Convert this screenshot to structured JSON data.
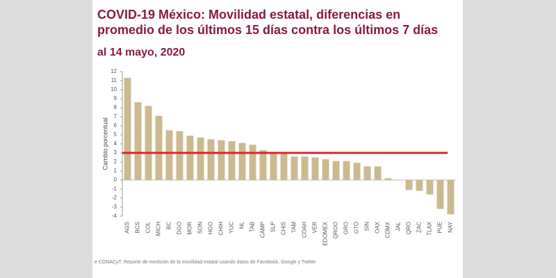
{
  "chart_data": {
    "type": "bar",
    "title": [
      "COVID-19 México: Movilidad estatal, diferencias en",
      "promedio de los últimos 15 días contra los últimos 7 días"
    ],
    "subtitle": "al 14 mayo, 2020",
    "y_label": "Cambio porcentual",
    "source": "e CONACyT, Reporte de medición de la movilidad estatal usando datos de Facebook, Google y Twitter",
    "categories": [
      "AGS",
      "BCS",
      "COL",
      "MICH",
      "BC",
      "DGO",
      "MOR",
      "SON",
      "HGO",
      "CHIH",
      "YUC",
      "NL",
      "TAB",
      "CAMP",
      "SLP",
      "CHIS",
      "TAM",
      "COAH",
      "VER",
      "EDOMEX",
      "QROO",
      "GRO",
      "GTO",
      "SIN",
      "OAX",
      "CDMX",
      "JAL",
      "QRO",
      "ZAC",
      "TLAX",
      "PUE",
      "NAY"
    ],
    "values": [
      11.3,
      8.6,
      8.2,
      7.1,
      5.5,
      5.4,
      4.9,
      4.7,
      4.5,
      4.4,
      4.3,
      4.1,
      3.9,
      3.3,
      3.0,
      3.0,
      2.6,
      2.6,
      2.5,
      2.3,
      2.1,
      2.1,
      1.9,
      1.5,
      1.5,
      0.2,
      0,
      -1.1,
      -1.2,
      -1.6,
      -3.2,
      -3.8
    ],
    "color": "#cbb990",
    "reference_line": 3,
    "reference_color": "#d8262b",
    "ylim": [
      -4,
      12
    ],
    "yticks": [
      -4,
      -3,
      -2,
      -1,
      0,
      1,
      2,
      3,
      4,
      5,
      6,
      7,
      8,
      9,
      10,
      11,
      12
    ]
  }
}
